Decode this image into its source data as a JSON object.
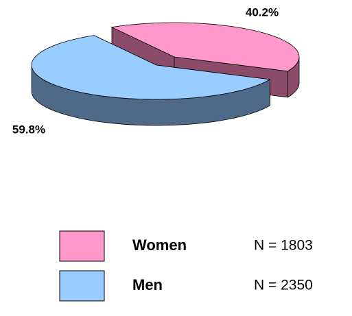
{
  "chart_data": {
    "type": "pie3d",
    "categories": [
      "Women",
      "Men"
    ],
    "values": [
      40.2,
      59.8
    ],
    "value_labels": [
      "40.2%",
      "59.8%"
    ],
    "colors": [
      "#ff99cc",
      "#99ccff"
    ],
    "side_colors": [
      "#8a4c68",
      "#4f6a88"
    ],
    "legend_notes": [
      "N = 1803",
      "N = 2350"
    ]
  }
}
